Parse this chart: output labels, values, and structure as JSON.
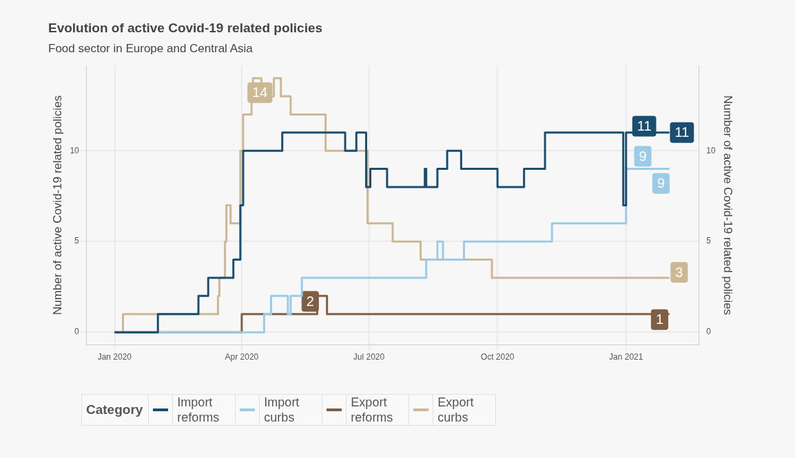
{
  "chart_data": {
    "type": "step",
    "title": "Evolution of active Covid-19 related policies",
    "subtitle": "Food sector in Europe and Central Asia",
    "ylabel": "Number of active Covid-19 related policies",
    "y2label": "Number of active Covid-19 related policies",
    "legend_title": "Category",
    "legend": "bottom",
    "grid": true,
    "xlim": [
      "2019-12-12",
      "2021-02-22"
    ],
    "xticks": [
      {
        "value": "2020-01-01",
        "label": "Jan 2020"
      },
      {
        "value": "2020-04-01",
        "label": "Apr 2020"
      },
      {
        "value": "2020-07-01",
        "label": "Jul 2020"
      },
      {
        "value": "2020-10-01",
        "label": "Oct 2020"
      },
      {
        "value": "2021-01-01",
        "label": "Jan 2021"
      }
    ],
    "ylim": [
      -0.7,
      14.7
    ],
    "yticks": [
      0,
      5,
      10
    ],
    "y2lim": [
      -0.7,
      14.7
    ],
    "y2ticks": [
      0,
      5,
      10
    ],
    "series": [
      {
        "name": "Import reforms",
        "color": "#1a4e6e",
        "x": [
          "2020-01-01",
          "2020-02-01",
          "2020-03-01",
          "2020-03-08",
          "2020-03-26",
          "2020-03-31",
          "2020-04-02",
          "2020-04-30",
          "2020-06-14",
          "2020-06-22",
          "2020-06-29",
          "2020-07-02",
          "2020-07-14",
          "2020-08-10",
          "2020-08-11",
          "2020-08-19",
          "2020-08-26",
          "2020-09-05",
          "2020-10-01",
          "2020-10-20",
          "2020-11-04",
          "2020-12-30",
          "2021-01-01",
          "2021-02-01"
        ],
        "values": [
          0,
          1,
          2,
          3,
          4,
          7,
          10,
          11,
          10,
          11,
          8,
          9,
          8,
          9,
          8,
          9,
          10,
          9,
          8,
          9,
          11,
          7,
          11,
          11
        ]
      },
      {
        "name": "Import curbs",
        "color": "#9ccbe8",
        "x": [
          "2020-01-01",
          "2020-04-17",
          "2020-04-22",
          "2020-05-04",
          "2020-05-06",
          "2020-05-14",
          "2020-08-11",
          "2020-08-19",
          "2020-08-23",
          "2020-09-07",
          "2020-11-09",
          "2021-01-01",
          "2021-02-01"
        ],
        "values": [
          0,
          1,
          2,
          1,
          2,
          3,
          4,
          5,
          4,
          5,
          6,
          9,
          9
        ]
      },
      {
        "name": "Export reforms",
        "color": "#7e5f45",
        "x": [
          "2020-01-01",
          "2020-04-01",
          "2020-05-25",
          "2020-06-01",
          "2021-02-01"
        ],
        "values": [
          0,
          1,
          2,
          1,
          1
        ]
      },
      {
        "name": "Export curbs",
        "color": "#cdb895",
        "x": [
          "2020-01-01",
          "2020-01-07",
          "2020-03-15",
          "2020-03-16",
          "2020-03-20",
          "2020-03-21",
          "2020-03-24",
          "2020-03-31",
          "2020-04-02",
          "2020-04-08",
          "2020-04-09",
          "2020-04-15",
          "2020-04-24",
          "2020-04-29",
          "2020-05-06",
          "2020-05-31",
          "2020-06-30",
          "2020-07-18",
          "2020-08-07",
          "2020-09-27",
          "2021-02-01"
        ],
        "values": [
          0,
          1,
          2,
          3,
          5,
          7,
          6,
          10,
          12,
          13,
          14,
          13,
          14,
          13,
          12,
          10,
          6,
          5,
          4,
          3,
          3
        ]
      }
    ],
    "annotations": [
      {
        "text": "14",
        "x": "2020-04-14",
        "y": 13.2
      },
      {
        "text": "2",
        "x": "2020-05-20",
        "y": 1.7
      },
      {
        "text": "11",
        "x": "2021-01-14",
        "y": 11.35
      },
      {
        "text": "11",
        "x": "2021-02-10",
        "y": 11
      },
      {
        "text": "9",
        "x": "2021-01-13",
        "y": 9.7
      },
      {
        "text": "9",
        "x": "2021-01-26",
        "y": 8.2
      },
      {
        "text": "3",
        "x": "2021-02-08",
        "y": 3.3
      },
      {
        "text": "1",
        "x": "2021-01-25",
        "y": 0.7
      }
    ]
  }
}
